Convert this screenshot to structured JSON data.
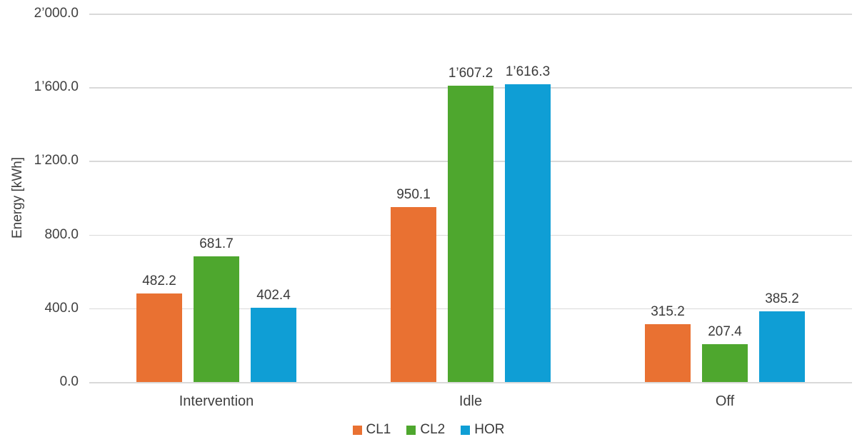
{
  "chart_data": {
    "type": "bar",
    "title": "",
    "xlabel": "",
    "ylabel": "Energy [kWh]",
    "categories": [
      "Intervention",
      "Idle",
      "Off"
    ],
    "series": [
      {
        "name": "CL1",
        "color": "#E97132",
        "values": [
          482.2,
          950.1,
          315.2
        ],
        "labels": [
          "482.2",
          "950.1",
          "315.2"
        ]
      },
      {
        "name": "CL2",
        "color": "#4EA72E",
        "values": [
          681.7,
          1607.2,
          207.4
        ],
        "labels": [
          "681.7",
          "1’607.2",
          "207.4"
        ]
      },
      {
        "name": "HOR",
        "color": "#0F9ED5",
        "values": [
          402.4,
          1616.3,
          385.2
        ],
        "labels": [
          "402.4",
          "1’616.3",
          "385.2"
        ]
      }
    ],
    "ylim": [
      0,
      2000
    ],
    "ytick_step": 400,
    "yticks": [
      {
        "value": 0,
        "label": "0.0"
      },
      {
        "value": 400,
        "label": "400.0"
      },
      {
        "value": 800,
        "label": "800.0"
      },
      {
        "value": 1200,
        "label": "1’200.0"
      },
      {
        "value": 1600,
        "label": "1’600.0"
      },
      {
        "value": 2000,
        "label": "2’000.0"
      }
    ],
    "grid": "horizontal",
    "gridline_color": "#d9d9d9",
    "text_color": "#3f3f3f",
    "legend_position": "bottom",
    "data_labels": true
  }
}
